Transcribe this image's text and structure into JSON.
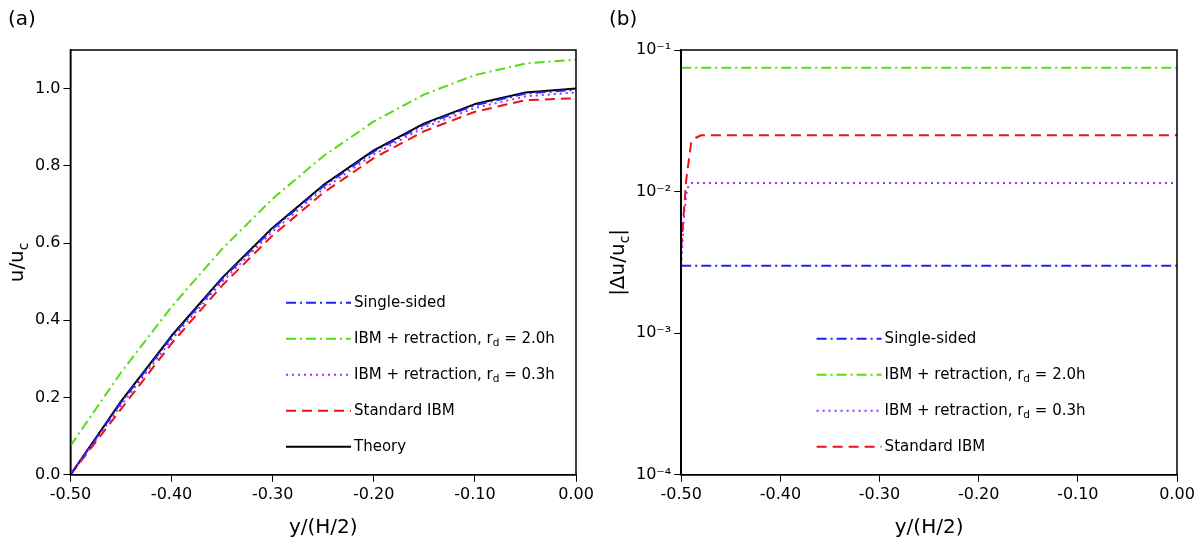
{
  "chart_data": [
    {
      "type": "line",
      "title": "(a)",
      "xlabel": "y/(H/2)",
      "ylabel": "u/u$_{c}$",
      "legend": "bottom right",
      "marker": "none",
      "xlim": [
        -0.5,
        0
      ],
      "xticks": [
        {
          "value": -0.5,
          "label": "-0.50"
        },
        {
          "value": -0.4,
          "label": "-0.40"
        },
        {
          "value": -0.3,
          "label": "-0.30"
        },
        {
          "value": -0.2,
          "label": "-0.20"
        },
        {
          "value": -0.1,
          "label": "-0.10"
        },
        {
          "value": 0,
          "label": "0.00"
        }
      ],
      "ylim": [
        0,
        1.1
      ],
      "yticks": [
        {
          "value": 0,
          "label": "0.0"
        },
        {
          "value": 0.2,
          "label": "0.2"
        },
        {
          "value": 0.4,
          "label": "0.4"
        },
        {
          "value": 0.6,
          "label": "0.6"
        },
        {
          "value": 0.8,
          "label": "0.8"
        },
        {
          "value": 1,
          "label": "1.0"
        }
      ],
      "x": [
        -0.5,
        -0.45,
        -0.4,
        -0.35,
        -0.3,
        -0.25,
        -0.2,
        -0.15,
        -0.1,
        -0.05,
        0
      ],
      "series": [
        {
          "name": "Single-sided",
          "color": "#2222ee",
          "line_style": "dashdot",
          "values": [
            0,
            0.187,
            0.357,
            0.507,
            0.637,
            0.747,
            0.837,
            0.907,
            0.957,
            0.987,
            0.997
          ]
        },
        {
          "name": "IBM + retraction, r$_{d}$ = 2.0h",
          "color": "#55dd11",
          "line_style": "dashdot",
          "values": [
            0.075,
            0.265,
            0.435,
            0.585,
            0.715,
            0.825,
            0.915,
            0.985,
            1.035,
            1.065,
            1.075
          ]
        },
        {
          "name": "IBM + retraction, r$_{d}$ = 0.3h",
          "color": "#9933ff",
          "line_style": "dotted",
          "values": [
            0,
            0.18,
            0.35,
            0.5,
            0.63,
            0.74,
            0.83,
            0.9,
            0.95,
            0.98,
            0.99
          ]
        },
        {
          "name": "Standard IBM",
          "color": "#ee1111",
          "line_style": "dashed",
          "values": [
            0,
            0.17,
            0.34,
            0.49,
            0.62,
            0.73,
            0.82,
            0.89,
            0.94,
            0.97,
            0.975
          ]
        },
        {
          "name": "Theory",
          "color": "#000000",
          "line_style": "solid",
          "values": [
            0,
            0.19,
            0.36,
            0.51,
            0.64,
            0.75,
            0.84,
            0.91,
            0.96,
            0.99,
            1
          ]
        }
      ]
    },
    {
      "type": "line",
      "title": "(b)",
      "xlabel": "y/(H/2)",
      "ylabel": "|Δu/u$_{c}$|",
      "legend": "bottom",
      "marker": "none",
      "log": "y",
      "xlim": [
        -0.5,
        0
      ],
      "xticks": [
        {
          "value": -0.5,
          "label": "-0.50"
        },
        {
          "value": -0.4,
          "label": "-0.40"
        },
        {
          "value": -0.3,
          "label": "-0.30"
        },
        {
          "value": -0.2,
          "label": "-0.20"
        },
        {
          "value": -0.1,
          "label": "-0.10"
        },
        {
          "value": 0,
          "label": "0.00"
        }
      ],
      "ylim": [
        0.0001,
        0.1
      ],
      "yticks": [
        {
          "value": 0.0001,
          "label": "10⁻⁴"
        },
        {
          "value": 0.001,
          "label": "10⁻³"
        },
        {
          "value": 0.01,
          "label": "10⁻²"
        },
        {
          "value": 0.1,
          "label": "10⁻¹"
        }
      ],
      "series": [
        {
          "name": "Single-sided",
          "color": "#2222ee",
          "line_style": "dashdot",
          "x": [
            -0.5,
            0
          ],
          "values": [
            0.003,
            0.003
          ]
        },
        {
          "name": "IBM + retraction, r$_{d}$ = 2.0h",
          "color": "#55dd11",
          "line_style": "dashdot",
          "x": [
            -0.5,
            0
          ],
          "values": [
            0.075,
            0.075
          ]
        },
        {
          "name": "IBM + retraction, r$_{d}$ = 0.3h",
          "color": "#9933ff",
          "line_style": "dotted",
          "x": [
            -0.5,
            -0.497,
            -0.494,
            -0.49,
            -0.48,
            0
          ],
          "values": [
            0.003,
            0.007,
            0.0105,
            0.0115,
            0.0115,
            0.0115
          ]
        },
        {
          "name": "Standard IBM",
          "color": "#ee1111",
          "line_style": "dashed",
          "x": [
            -0.5,
            -0.495,
            -0.49,
            -0.485,
            -0.48,
            0
          ],
          "values": [
            0.004,
            0.012,
            0.022,
            0.024,
            0.025,
            0.025
          ]
        }
      ]
    }
  ]
}
